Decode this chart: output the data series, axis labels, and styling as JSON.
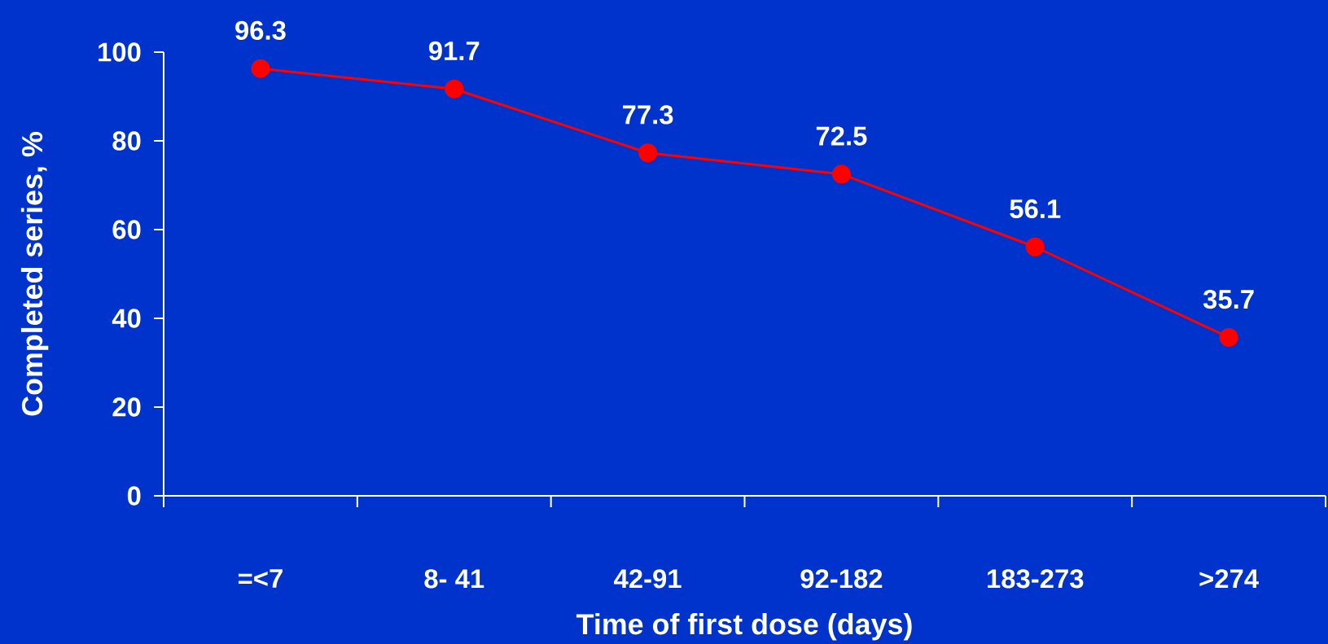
{
  "chart_data": {
    "type": "line",
    "xlabel": "Time of first dose (days)",
    "ylabel": "Completed series, %",
    "categories": [
      "=<7",
      "8- 41",
      "42-91",
      "92-182",
      "183-273",
      ">274"
    ],
    "values": [
      96.3,
      91.7,
      77.3,
      72.5,
      56.1,
      35.7
    ],
    "color": "#ff0000",
    "ylim": [
      0,
      100
    ],
    "yticks": [
      0,
      20,
      40,
      60,
      80,
      100
    ],
    "grid": false,
    "marker": "circle",
    "line_style": "solid",
    "data_labels": true
  }
}
